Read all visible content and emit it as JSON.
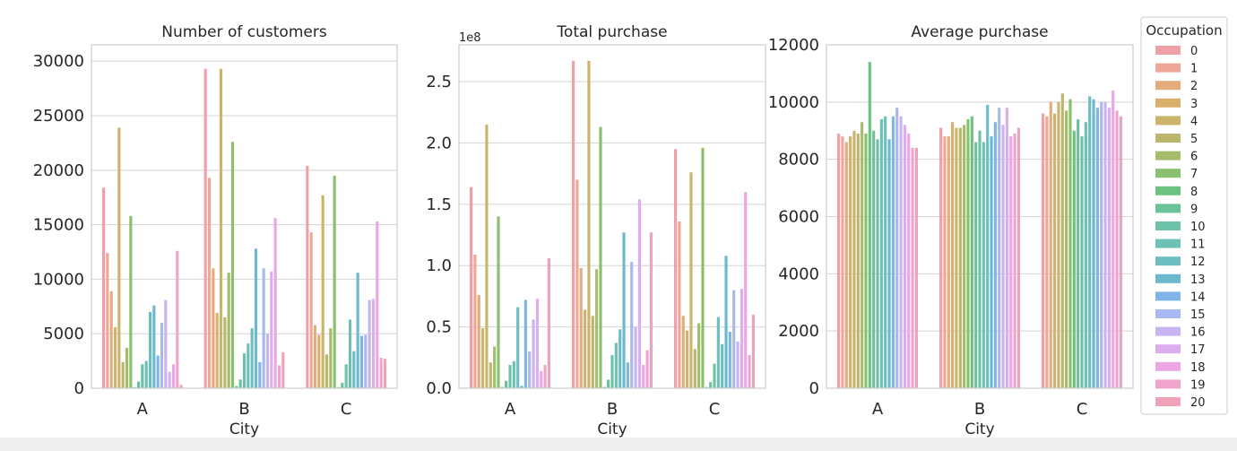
{
  "chart_data": [
    {
      "type": "bar",
      "title": "Number of customers",
      "xlabel": "City",
      "ylabel": "",
      "categories": [
        "A",
        "B",
        "C"
      ],
      "ylim": [
        0,
        31500
      ],
      "yticks": [
        0,
        5000,
        10000,
        15000,
        20000,
        25000,
        30000
      ],
      "ytick_labels": [
        "0",
        "5000",
        "10000",
        "15000",
        "20000",
        "25000",
        "30000"
      ],
      "offset_label": "",
      "series": [
        {
          "name": "0",
          "values": [
            18400,
            29300,
            20400
          ]
        },
        {
          "name": "1",
          "values": [
            12400,
            19300,
            14300
          ]
        },
        {
          "name": "2",
          "values": [
            8900,
            11000,
            5800
          ]
        },
        {
          "name": "3",
          "values": [
            5600,
            6900,
            4900
          ]
        },
        {
          "name": "4",
          "values": [
            23900,
            29300,
            17700
          ]
        },
        {
          "name": "5",
          "values": [
            2400,
            6500,
            3100
          ]
        },
        {
          "name": "6",
          "values": [
            3700,
            10600,
            5500
          ]
        },
        {
          "name": "7",
          "values": [
            15800,
            22600,
            19500
          ]
        },
        {
          "name": "8",
          "values": [
            100,
            200,
            100
          ]
        },
        {
          "name": "9",
          "values": [
            600,
            800,
            500
          ]
        },
        {
          "name": "10",
          "values": [
            2200,
            3200,
            2200
          ]
        },
        {
          "name": "11",
          "values": [
            2500,
            4100,
            6300
          ]
        },
        {
          "name": "12",
          "values": [
            7000,
            5500,
            3400
          ]
        },
        {
          "name": "13",
          "values": [
            7600,
            12800,
            10600
          ]
        },
        {
          "name": "14",
          "values": [
            3000,
            2400,
            4800
          ]
        },
        {
          "name": "15",
          "values": [
            6000,
            11000,
            4900
          ]
        },
        {
          "name": "16",
          "values": [
            8100,
            5000,
            8100
          ]
        },
        {
          "name": "17",
          "values": [
            1500,
            10700,
            8200
          ]
        },
        {
          "name": "18",
          "values": [
            2200,
            15600,
            15300
          ]
        },
        {
          "name": "19",
          "values": [
            12600,
            2100,
            2800
          ]
        },
        {
          "name": "20",
          "values": [
            300,
            3300,
            2700
          ]
        }
      ]
    },
    {
      "type": "bar",
      "title": "Total purchase",
      "xlabel": "City",
      "ylabel": "",
      "categories": [
        "A",
        "B",
        "C"
      ],
      "ylim": [
        0,
        2.8
      ],
      "yticks": [
        0,
        0.5,
        1.0,
        1.5,
        2.0,
        2.5
      ],
      "ytick_labels": [
        "0.0",
        "0.5",
        "1.0",
        "1.5",
        "2.0",
        "2.5"
      ],
      "offset_label": "1e8",
      "series": [
        {
          "name": "0",
          "values": [
            1.64,
            2.67,
            1.95
          ]
        },
        {
          "name": "1",
          "values": [
            1.09,
            1.7,
            1.36
          ]
        },
        {
          "name": "2",
          "values": [
            0.76,
            0.98,
            0.59
          ]
        },
        {
          "name": "3",
          "values": [
            0.49,
            0.64,
            0.47
          ]
        },
        {
          "name": "4",
          "values": [
            2.15,
            2.67,
            1.76
          ]
        },
        {
          "name": "5",
          "values": [
            0.21,
            0.59,
            0.32
          ]
        },
        {
          "name": "6",
          "values": [
            0.34,
            0.97,
            0.53
          ]
        },
        {
          "name": "7",
          "values": [
            1.4,
            2.13,
            1.96
          ]
        },
        {
          "name": "8",
          "values": [
            0.01,
            0.01,
            0.01
          ]
        },
        {
          "name": "9",
          "values": [
            0.06,
            0.07,
            0.05
          ]
        },
        {
          "name": "10",
          "values": [
            0.19,
            0.27,
            0.2
          ]
        },
        {
          "name": "11",
          "values": [
            0.22,
            0.37,
            0.58
          ]
        },
        {
          "name": "12",
          "values": [
            0.66,
            0.48,
            0.36
          ]
        },
        {
          "name": "13",
          "values": [
            0.02,
            1.27,
            1.08
          ]
        },
        {
          "name": "14",
          "values": [
            0.72,
            0.21,
            0.46
          ]
        },
        {
          "name": "15",
          "values": [
            0.3,
            1.03,
            0.8
          ]
        },
        {
          "name": "16",
          "values": [
            0.56,
            0.5,
            0.38
          ]
        },
        {
          "name": "17",
          "values": [
            0.73,
            1.54,
            0.81
          ]
        },
        {
          "name": "18",
          "values": [
            0.14,
            0.19,
            1.6
          ]
        },
        {
          "name": "19",
          "values": [
            0.19,
            0.31,
            0.27
          ]
        },
        {
          "name": "20",
          "values": [
            1.06,
            1.27,
            0.6
          ]
        }
      ]
    },
    {
      "type": "bar",
      "title": "Average purchase",
      "xlabel": "City",
      "ylabel": "",
      "categories": [
        "A",
        "B",
        "C"
      ],
      "ylim": [
        0,
        12000
      ],
      "yticks": [
        0,
        2000,
        4000,
        6000,
        8000,
        10000,
        12000
      ],
      "ytick_labels": [
        "0",
        "2000",
        "4000",
        "6000",
        "8000",
        "10000",
        "12000"
      ],
      "offset_label": "",
      "series": [
        {
          "name": "0",
          "values": [
            8900,
            9100,
            9600
          ]
        },
        {
          "name": "1",
          "values": [
            8800,
            8800,
            9500
          ]
        },
        {
          "name": "2",
          "values": [
            8600,
            8800,
            10000
          ]
        },
        {
          "name": "3",
          "values": [
            8800,
            9300,
            9600
          ]
        },
        {
          "name": "4",
          "values": [
            9000,
            9100,
            10000
          ]
        },
        {
          "name": "5",
          "values": [
            8900,
            9100,
            10300
          ]
        },
        {
          "name": "6",
          "values": [
            9300,
            9200,
            9700
          ]
        },
        {
          "name": "7",
          "values": [
            8900,
            9400,
            10100
          ]
        },
        {
          "name": "8",
          "values": [
            11400,
            9500,
            9000
          ]
        },
        {
          "name": "9",
          "values": [
            9000,
            8600,
            9400
          ]
        },
        {
          "name": "10",
          "values": [
            8700,
            9000,
            8800
          ]
        },
        {
          "name": "11",
          "values": [
            9400,
            8600,
            9300
          ]
        },
        {
          "name": "12",
          "values": [
            9500,
            9900,
            10200
          ]
        },
        {
          "name": "13",
          "values": [
            8700,
            8800,
            10100
          ]
        },
        {
          "name": "14",
          "values": [
            9500,
            9300,
            9800
          ]
        },
        {
          "name": "15",
          "values": [
            9800,
            9800,
            10000
          ]
        },
        {
          "name": "16",
          "values": [
            9500,
            9200,
            10000
          ]
        },
        {
          "name": "17",
          "values": [
            9200,
            9800,
            9800
          ]
        },
        {
          "name": "18",
          "values": [
            8900,
            8800,
            10400
          ]
        },
        {
          "name": "19",
          "values": [
            8400,
            8900,
            9700
          ]
        },
        {
          "name": "20",
          "values": [
            8400,
            9100,
            9500
          ]
        }
      ]
    }
  ],
  "legend": {
    "title": "Occupation",
    "placement": "right",
    "items": [
      "0",
      "1",
      "2",
      "3",
      "4",
      "5",
      "6",
      "7",
      "8",
      "9",
      "10",
      "11",
      "12",
      "13",
      "14",
      "15",
      "16",
      "17",
      "18",
      "19",
      "20"
    ]
  },
  "colors": {
    "palette": [
      "#f0a0a8",
      "#eea696",
      "#e4ab7c",
      "#d8b06c",
      "#ccb46c",
      "#bab76c",
      "#a6bb6c",
      "#88c06e",
      "#6cc280",
      "#6cc298",
      "#6cc2a8",
      "#6cc0b4",
      "#6cbec0",
      "#6cb8cc",
      "#80b4e8",
      "#a8b8f0",
      "#c8b4f0",
      "#dcaef0",
      "#eca6e4",
      "#f0a4cc",
      "#f0a2b8"
    ],
    "grid": "#d4d4d4",
    "spine": "#cccccc",
    "text": "#262626"
  }
}
